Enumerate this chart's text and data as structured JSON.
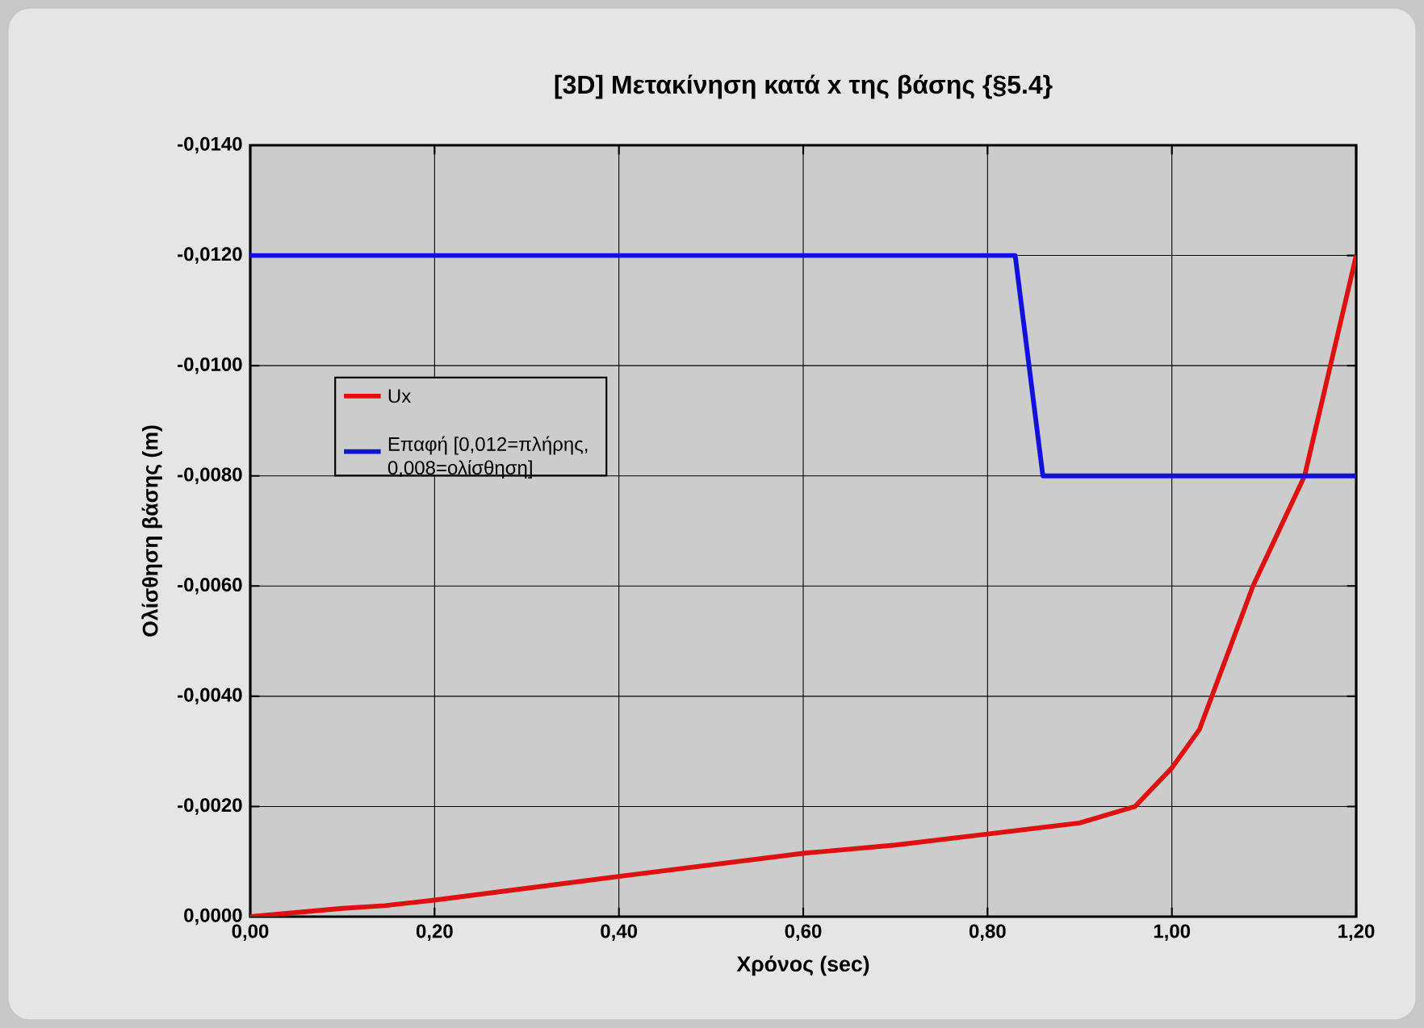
{
  "chart_data": {
    "type": "line",
    "title": "[3D] Μετακίνηση κατά x της βάσης {§5.4}",
    "xlabel": "Χρόνος (sec)",
    "ylabel": "Ολίσθηση βάσης (m)",
    "xlim": [
      0,
      1.2
    ],
    "ylim": [
      0,
      -0.014
    ],
    "xticks": [
      {
        "value": 0,
        "label": "0,00"
      },
      {
        "value": 0.2,
        "label": "0,20"
      },
      {
        "value": 0.4,
        "label": "0,40"
      },
      {
        "value": 0.6,
        "label": "0,60"
      },
      {
        "value": 0.8,
        "label": "0,80"
      },
      {
        "value": 1.0,
        "label": "1,00"
      },
      {
        "value": 1.2,
        "label": "1,20"
      }
    ],
    "yticks": [
      {
        "value": 0,
        "label": "0,0000"
      },
      {
        "value": -0.002,
        "label": "-0,0020"
      },
      {
        "value": -0.004,
        "label": "-0,0040"
      },
      {
        "value": -0.006,
        "label": "-0,0060"
      },
      {
        "value": -0.008,
        "label": "-0,0080"
      },
      {
        "value": -0.01,
        "label": "-0,0100"
      },
      {
        "value": -0.012,
        "label": "-0,0120"
      },
      {
        "value": -0.014,
        "label": "-0,0140"
      }
    ],
    "grid": true,
    "legend": "left",
    "marker": "none",
    "line_style": "solid",
    "series": [
      {
        "name": "Ux",
        "color": "#e01010",
        "x": [
          0,
          0.1,
          0.146,
          0.2,
          0.4,
          0.6,
          0.7,
          0.8,
          0.9,
          0.96,
          1.0,
          1.03,
          1.088,
          1.144,
          1.2
        ],
        "values": [
          0,
          -0.00015,
          -0.0002,
          -0.0003,
          -0.00073,
          -0.00115,
          -0.0013,
          -0.0015,
          -0.0017,
          -0.002,
          -0.0027,
          -0.0034,
          -0.006,
          -0.008,
          -0.012
        ]
      },
      {
        "name": "Επαφή [0,012=πλήρης, 0,008=ολίσθηση]",
        "color": "#1010e0",
        "x": [
          0,
          0.83,
          0.86,
          1.2
        ],
        "values": [
          -0.012,
          -0.012,
          -0.008,
          -0.008
        ]
      }
    ]
  }
}
